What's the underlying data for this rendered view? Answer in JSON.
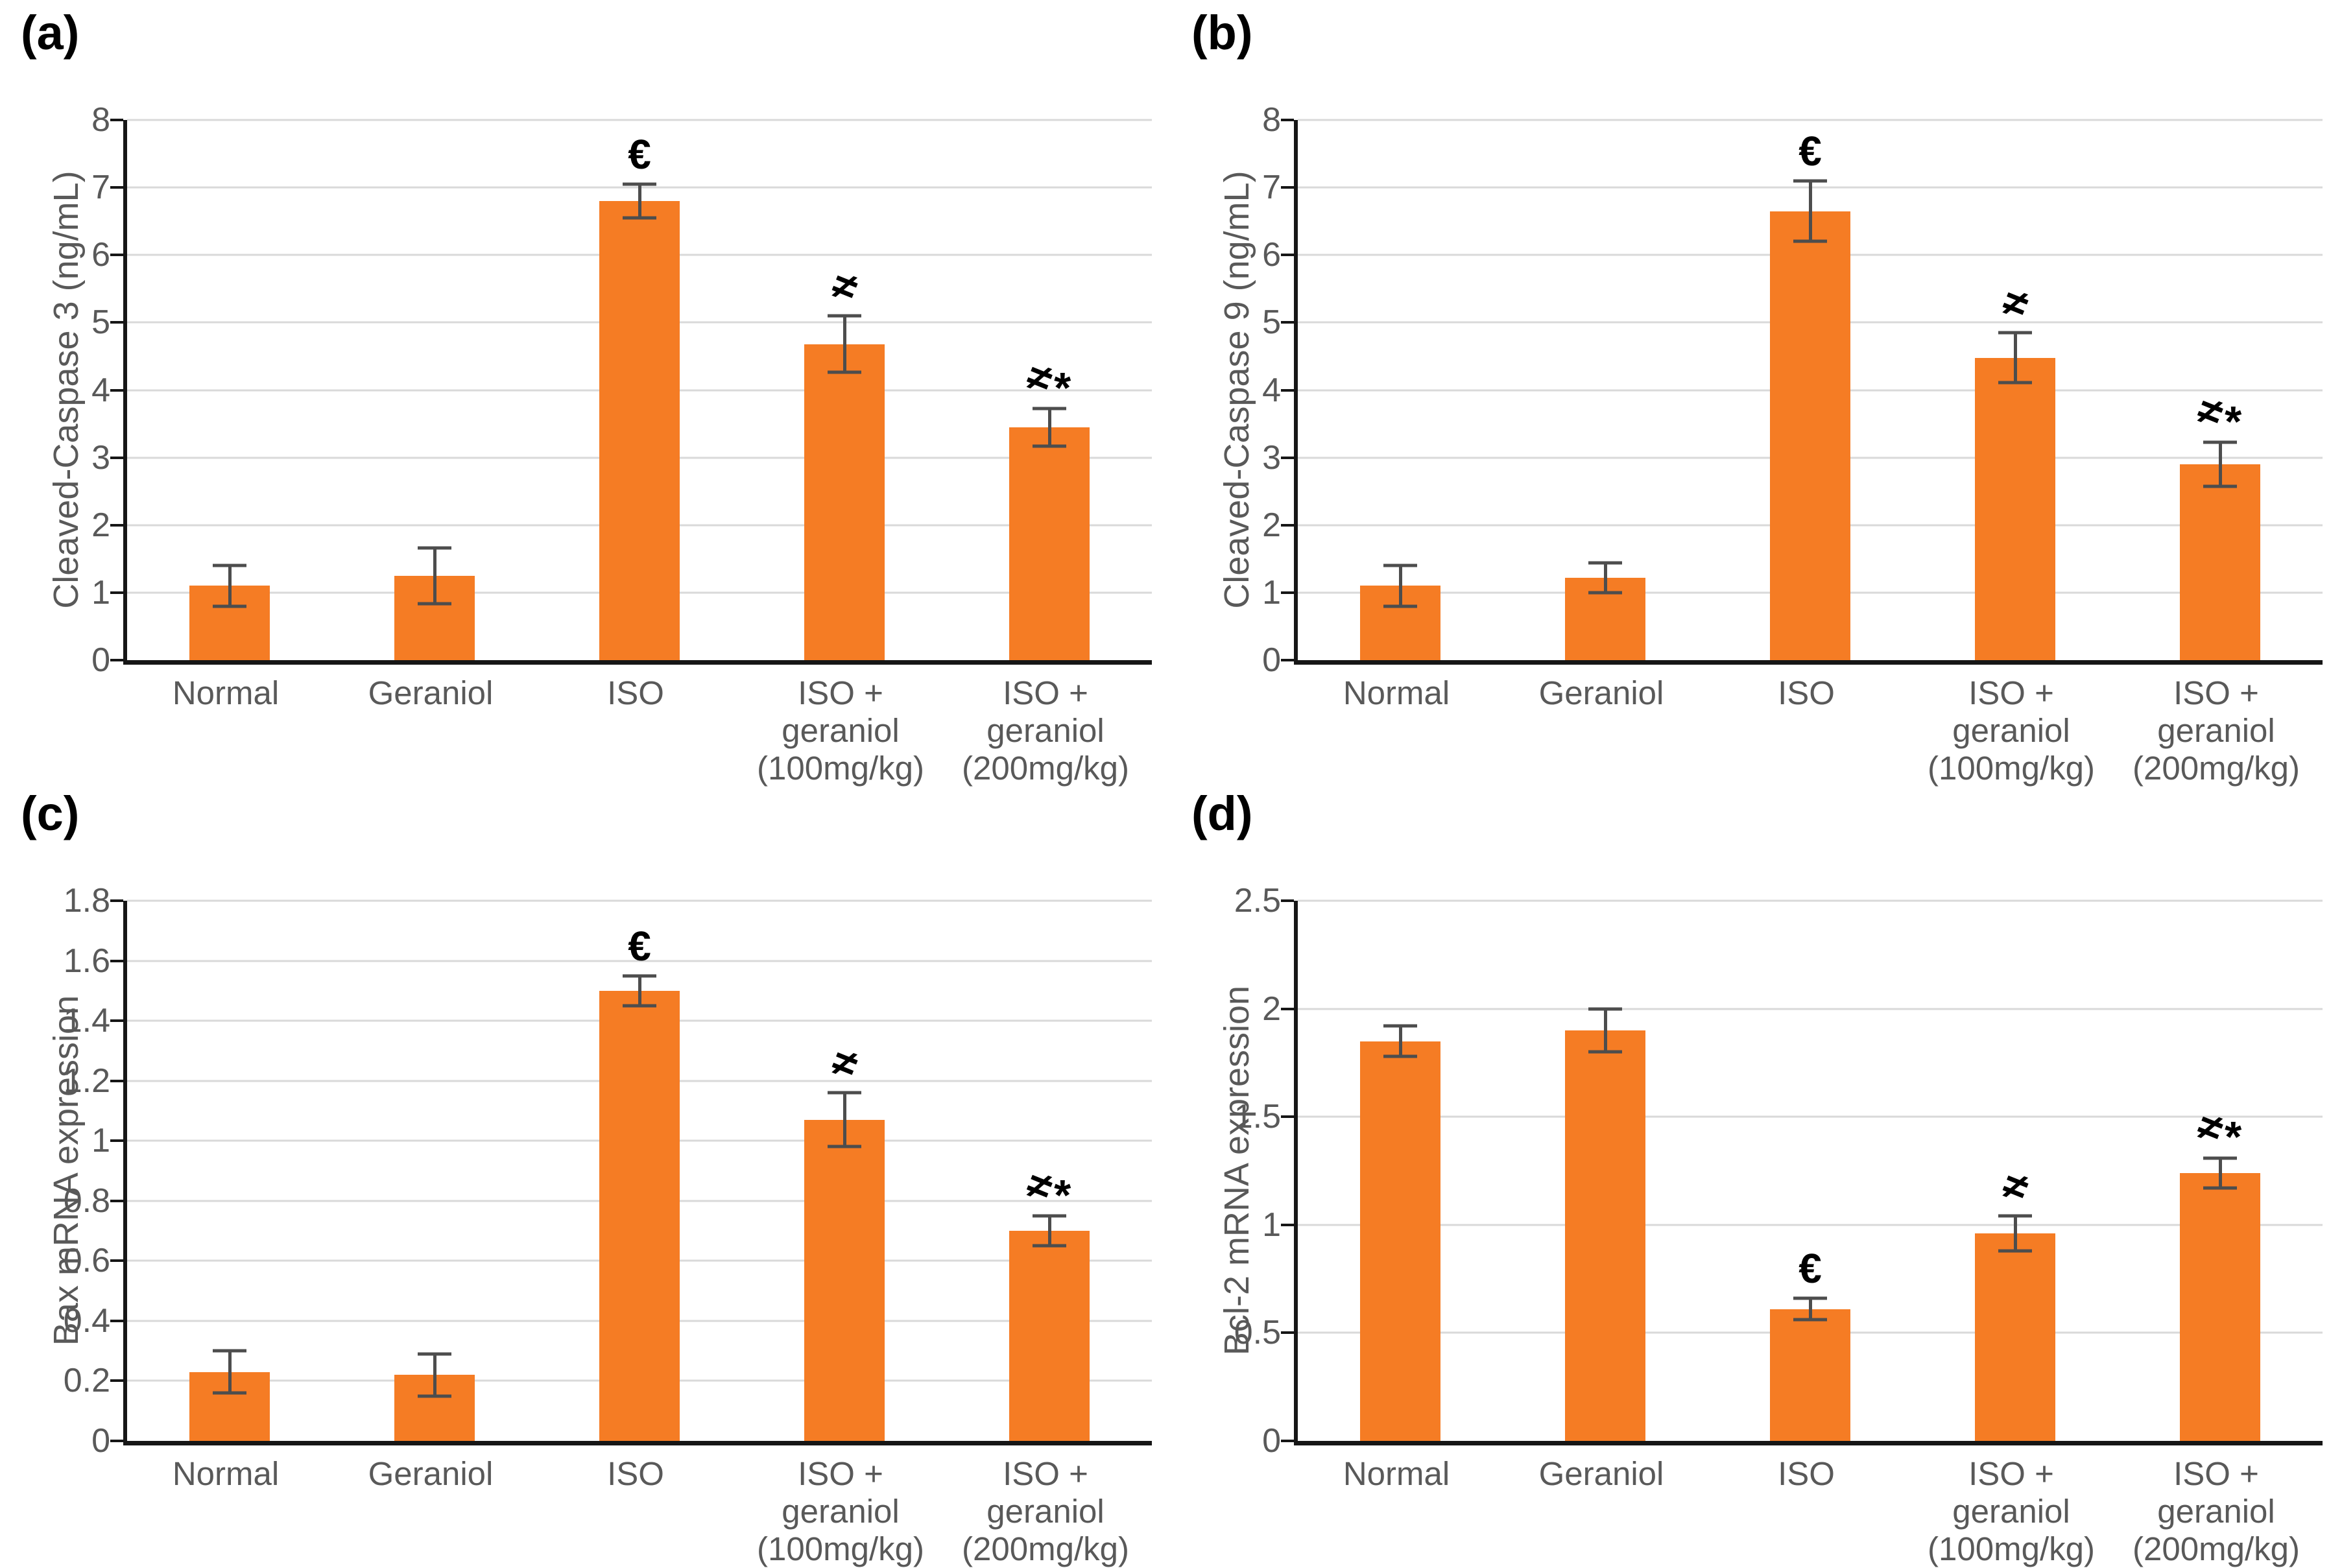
{
  "colors": {
    "bar": "#F57C24",
    "error_bar": "#4D4D4D",
    "gridline": "#D9D9D9",
    "axis": "#161616",
    "label_text": "#595959",
    "annotation": "#000000",
    "background": "#FFFFFF"
  },
  "chart_data": [
    {
      "type": "bar",
      "panel_label": "(a)",
      "title": "",
      "xlabel": "",
      "ylabel": "Cleaved-Caspase 3 (ng/mL)",
      "categories": [
        "Normal",
        "Geraniol",
        "ISO",
        "ISO +\ngeraniol\n(100mg/kg)",
        "ISO +\ngeraniol\n(200mg/kg)"
      ],
      "values": [
        1.1,
        1.25,
        6.8,
        4.68,
        3.45
      ],
      "errors": [
        0.3,
        0.41,
        0.25,
        0.42,
        0.28
      ],
      "annotations": [
        "",
        "",
        "€",
        "≠",
        "≠*"
      ],
      "ylim": [
        0,
        8
      ],
      "yticks": [
        0,
        1,
        2,
        3,
        4,
        5,
        6,
        7,
        8
      ],
      "ytick_labels": [
        "0",
        "1",
        "2",
        "3",
        "4",
        "5",
        "6",
        "7",
        "8"
      ],
      "grid": true,
      "legend": "none"
    },
    {
      "type": "bar",
      "panel_label": "(b)",
      "title": "",
      "xlabel": "",
      "ylabel": "Cleaved-Caspase 9 (ng/mL)",
      "categories": [
        "Normal",
        "Geraniol",
        "ISO",
        "ISO +\ngeraniol\n(100mg/kg)",
        "ISO +\ngeraniol\n(200mg/kg)"
      ],
      "values": [
        1.1,
        1.22,
        6.65,
        4.48,
        2.9
      ],
      "errors": [
        0.3,
        0.22,
        0.45,
        0.37,
        0.33
      ],
      "annotations": [
        "",
        "",
        "€",
        "≠",
        "≠*"
      ],
      "ylim": [
        0,
        8
      ],
      "yticks": [
        0,
        1,
        2,
        3,
        4,
        5,
        6,
        7,
        8
      ],
      "ytick_labels": [
        "0",
        "1",
        "2",
        "3",
        "4",
        "5",
        "6",
        "7",
        "8"
      ],
      "grid": true,
      "legend": "none"
    },
    {
      "type": "bar",
      "panel_label": "(c)",
      "title": "",
      "xlabel": "",
      "ylabel": "Bax mRNA expression",
      "categories": [
        "Normal",
        "Geraniol",
        "ISO",
        "ISO +\ngeraniol\n(100mg/kg)",
        "ISO +\ngeraniol\n(200mg/kg)"
      ],
      "values": [
        0.23,
        0.22,
        1.5,
        1.07,
        0.7
      ],
      "errors": [
        0.07,
        0.07,
        0.05,
        0.09,
        0.05
      ],
      "annotations": [
        "",
        "",
        "€",
        "≠",
        "≠*"
      ],
      "ylim": [
        0,
        1.8
      ],
      "yticks": [
        0,
        0.2,
        0.4,
        0.6,
        0.8,
        1,
        1.2,
        1.4,
        1.6,
        1.8
      ],
      "ytick_labels": [
        "0",
        "0.2",
        "0.4",
        "0.6",
        "0.8",
        "1",
        "1.2",
        "1.4",
        "1.6",
        "1.8"
      ],
      "grid": true,
      "legend": "none"
    },
    {
      "type": "bar",
      "panel_label": "(d)",
      "title": "",
      "xlabel": "",
      "ylabel": "Bcl-2 mRNA expression",
      "categories": [
        "Normal",
        "Geraniol",
        "ISO",
        "ISO +\ngeraniol\n(100mg/kg)",
        "ISO +\ngeraniol\n(200mg/kg)"
      ],
      "values": [
        1.85,
        1.9,
        0.61,
        0.96,
        1.24
      ],
      "errors": [
        0.07,
        0.1,
        0.05,
        0.08,
        0.07
      ],
      "annotations": [
        "",
        "",
        "€",
        "≠",
        "≠*"
      ],
      "ylim": [
        0,
        2.5
      ],
      "yticks": [
        0,
        0.5,
        1,
        1.5,
        2,
        2.5
      ],
      "ytick_labels": [
        "0",
        "0.5",
        "1",
        "1.5",
        "2",
        "2.5"
      ],
      "grid": true,
      "legend": "none"
    }
  ]
}
